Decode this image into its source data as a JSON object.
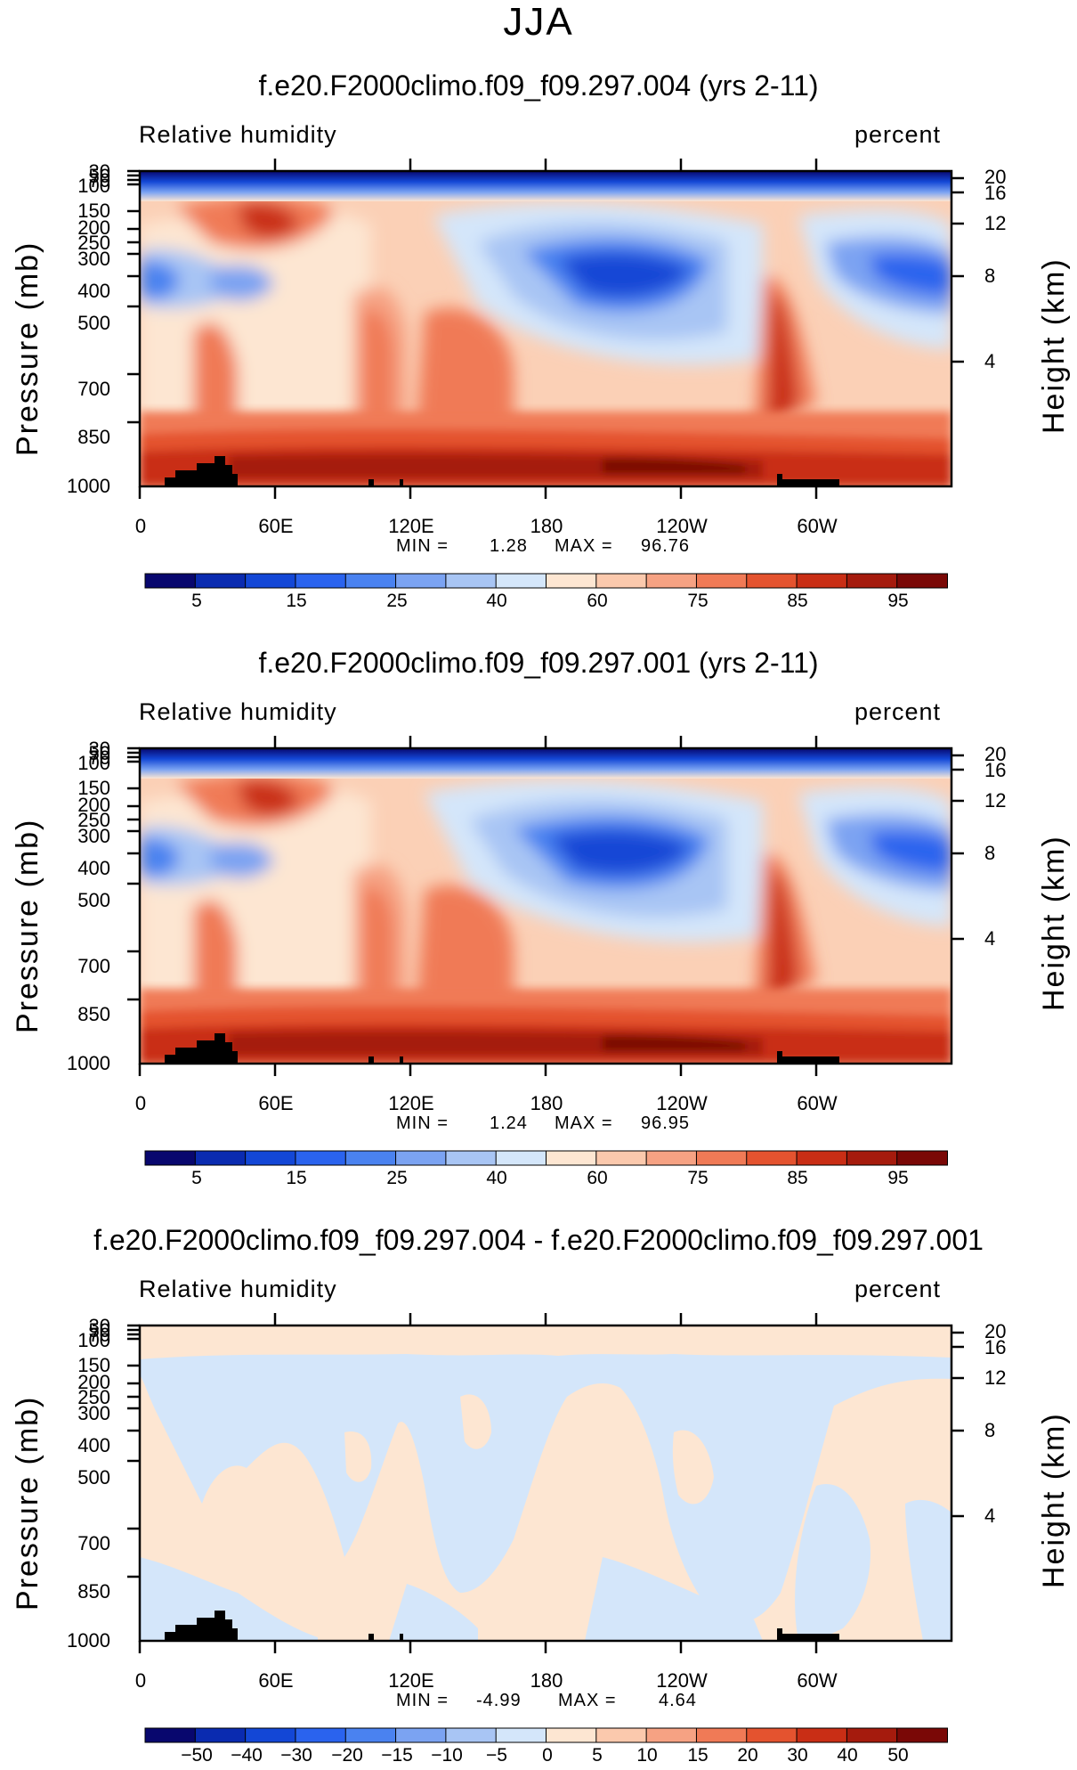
{
  "figure": {
    "season": "JJA"
  },
  "panels": [
    {
      "title": "f.e20.F2000climo.f09_f09.297.004 (yrs 2-11)",
      "variable": "Relative humidity",
      "units": "percent",
      "y_axis_label": "Pressure (mb)",
      "y2_axis_label": "Height (km)",
      "pressure_ticks": [
        "30",
        "50",
        "70",
        "100",
        "150",
        "200",
        "250",
        "300",
        "400",
        "500",
        "700",
        "850",
        "1000"
      ],
      "height_ticks": [
        "20",
        "16",
        "12",
        "8",
        "4"
      ],
      "x_ticks": [
        "0",
        "60E",
        "120E",
        "180",
        "120W",
        "60W"
      ],
      "min_label": "MIN =",
      "min_value": "1.28",
      "max_label": "MAX =",
      "max_value": "96.76",
      "colorbar_labels": [
        "5",
        "15",
        "25",
        "40",
        "60",
        "75",
        "85",
        "95"
      ]
    },
    {
      "title": "f.e20.F2000climo.f09_f09.297.001 (yrs 2-11)",
      "variable": "Relative humidity",
      "units": "percent",
      "y_axis_label": "Pressure (mb)",
      "y2_axis_label": "Height (km)",
      "pressure_ticks": [
        "30",
        "50",
        "70",
        "100",
        "150",
        "200",
        "250",
        "300",
        "400",
        "500",
        "700",
        "850",
        "1000"
      ],
      "height_ticks": [
        "20",
        "16",
        "12",
        "8",
        "4"
      ],
      "x_ticks": [
        "0",
        "60E",
        "120E",
        "180",
        "120W",
        "60W"
      ],
      "min_label": "MIN =",
      "min_value": "1.24",
      "max_label": "MAX =",
      "max_value": "96.95",
      "colorbar_labels": [
        "5",
        "15",
        "25",
        "40",
        "60",
        "75",
        "85",
        "95"
      ]
    },
    {
      "title": "f.e20.F2000climo.f09_f09.297.004 - f.e20.F2000climo.f09_f09.297.001",
      "variable": "Relative humidity",
      "units": "percent",
      "y_axis_label": "Pressure (mb)",
      "y2_axis_label": "Height (km)",
      "pressure_ticks": [
        "30",
        "50",
        "70",
        "100",
        "150",
        "200",
        "250",
        "300",
        "400",
        "500",
        "700",
        "850",
        "1000"
      ],
      "height_ticks": [
        "20",
        "16",
        "12",
        "8",
        "4"
      ],
      "x_ticks": [
        "0",
        "60E",
        "120E",
        "180",
        "120W",
        "60W"
      ],
      "min_label": "MIN =",
      "min_value": "-4.99",
      "max_label": "MAX =",
      "max_value": "4.64",
      "colorbar_labels": [
        "−50",
        "−40",
        "−30",
        "−20",
        "−15",
        "−10",
        "−5",
        "0",
        "5",
        "10",
        "15",
        "20",
        "30",
        "40",
        "50"
      ]
    }
  ],
  "chart_data": [
    {
      "type": "heatmap",
      "title": "f.e20.F2000climo.f09_f09.297.004 (yrs 2-11)",
      "variable": "Relative humidity",
      "units": "percent",
      "xlabel": "",
      "ylabel": "Pressure (mb)",
      "y2label": "Height (km)",
      "x_ticks": [
        "0",
        "60E",
        "120E",
        "180",
        "120W",
        "60W"
      ],
      "y_ticks": [
        30,
        50,
        70,
        100,
        150,
        200,
        250,
        300,
        400,
        500,
        700,
        850,
        1000
      ],
      "y2_ticks": [
        20,
        16,
        12,
        8,
        4
      ],
      "y_scale": "log-pressure",
      "ylim": [
        1000,
        30
      ],
      "min": 1.28,
      "max": 96.76,
      "contour_levels": [
        5,
        10,
        15,
        20,
        25,
        30,
        40,
        50,
        60,
        70,
        75,
        80,
        85,
        90,
        95
      ]
    },
    {
      "type": "heatmap",
      "title": "f.e20.F2000climo.f09_f09.297.001 (yrs 2-11)",
      "variable": "Relative humidity",
      "units": "percent",
      "xlabel": "",
      "ylabel": "Pressure (mb)",
      "y2label": "Height (km)",
      "x_ticks": [
        "0",
        "60E",
        "120E",
        "180",
        "120W",
        "60W"
      ],
      "y_ticks": [
        30,
        50,
        70,
        100,
        150,
        200,
        250,
        300,
        400,
        500,
        700,
        850,
        1000
      ],
      "y2_ticks": [
        20,
        16,
        12,
        8,
        4
      ],
      "y_scale": "log-pressure",
      "ylim": [
        1000,
        30
      ],
      "min": 1.24,
      "max": 96.95,
      "contour_levels": [
        5,
        10,
        15,
        20,
        25,
        30,
        40,
        50,
        60,
        70,
        75,
        80,
        85,
        90,
        95
      ]
    },
    {
      "type": "heatmap",
      "title": "f.e20.F2000climo.f09_f09.297.004 - f.e20.F2000climo.f09_f09.297.001",
      "variable": "Relative humidity",
      "units": "percent",
      "xlabel": "",
      "ylabel": "Pressure (mb)",
      "y2label": "Height (km)",
      "x_ticks": [
        "0",
        "60E",
        "120E",
        "180",
        "120W",
        "60W"
      ],
      "y_ticks": [
        30,
        50,
        70,
        100,
        150,
        200,
        250,
        300,
        400,
        500,
        700,
        850,
        1000
      ],
      "y2_ticks": [
        20,
        16,
        12,
        8,
        4
      ],
      "y_scale": "log-pressure",
      "ylim": [
        1000,
        30
      ],
      "min": -4.99,
      "max": 4.64,
      "contour_levels": [
        -50,
        -40,
        -30,
        -20,
        -15,
        -10,
        -5,
        0,
        5,
        10,
        15,
        20,
        30,
        40,
        50
      ]
    }
  ],
  "colors": {
    "rh_scale": [
      "#08076e",
      "#0a2bb0",
      "#1347d6",
      "#2a63ee",
      "#4a82f0",
      "#7ba3f2",
      "#a8c5f4",
      "#d4e6fa",
      "#fde6d2",
      "#fbc9ad",
      "#f6a283",
      "#f07a56",
      "#e4532f",
      "#c92e15",
      "#a51b0d",
      "#7a0806"
    ],
    "diff_scale": [
      "#08076e",
      "#0a2bb0",
      "#1347d6",
      "#2a63ee",
      "#4a82f0",
      "#7ba3f2",
      "#a8c5f4",
      "#d4e6fa",
      "#fde6d2",
      "#fbc9ad",
      "#f6a283",
      "#f07a56",
      "#e4532f",
      "#c92e15",
      "#a51b0d",
      "#7a0806"
    ],
    "topography": "#000000"
  }
}
